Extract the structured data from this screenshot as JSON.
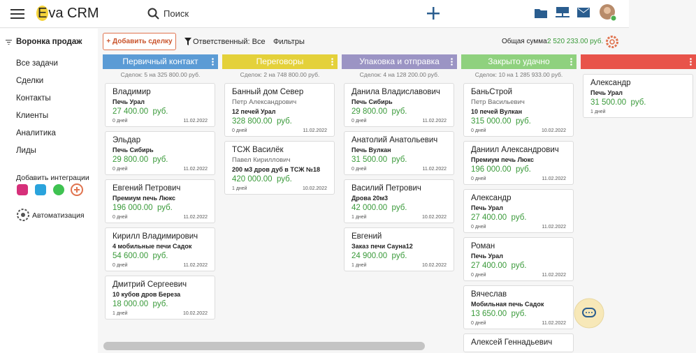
{
  "header": {
    "logo": "Eva CRM",
    "search": "Поиск"
  },
  "sidebar": {
    "title": "Воронка продаж",
    "menu": [
      "Все задачи",
      "Сделки",
      "Контакты",
      "Клиенты",
      "Аналитика",
      "Лиды"
    ],
    "integrations": "Добавить интеграции",
    "automation": "Автоматизация"
  },
  "toolbar": {
    "add_deal": "+ Добавить сделку",
    "responsible": "Ответственный: Все",
    "filters": "Фильтры",
    "total_label": "Общая сумма:",
    "total_value": "2 520 233.00 руб."
  },
  "columns": [
    {
      "title": "Первичный контакт",
      "color": "#5b9bd5",
      "summary": "Сделок: 5 на 325 800.00 руб.",
      "cards": [
        {
          "name": "Владимир",
          "product": "Печь Урал",
          "amount": "27 400.00  руб.",
          "age": "0 дней",
          "date": "11.02.2022"
        },
        {
          "name": "Эльдар",
          "product": "Печь Сибирь",
          "amount": "29 800.00  руб.",
          "age": "0 дней",
          "date": "11.02.2022"
        },
        {
          "name": "Евгений Петрович",
          "product": "Премиум печь Люкс",
          "amount": "196 000.00  руб.",
          "age": "0 дней",
          "date": "11.02.2022"
        },
        {
          "name": "Кирилл Владимирович",
          "product": "4 мобильные печи Садок",
          "amount": "54 600.00  руб.",
          "age": "0 дней",
          "date": "11.02.2022"
        },
        {
          "name": "Дмитрий Сергеевич",
          "product": "10 кубов дров Береза",
          "amount": "18 000.00  руб.",
          "age": "1 дней",
          "date": "10.02.2022"
        }
      ]
    },
    {
      "title": "Переговоры",
      "color": "#e4d13a",
      "summary": "Сделок: 2 на 748 800.00 руб.",
      "cards": [
        {
          "name": "Банный дом Север",
          "contact": "Петр Александрович",
          "product": "12 печей Урал",
          "amount": "328 800.00  руб.",
          "age": "0 дней",
          "date": "11.02.2022"
        },
        {
          "name": "ТСЖ Василёк",
          "contact": "Павел Кириллович",
          "product": "200 м3 дров дуб в ТСЖ №18",
          "amount": "420 000.00  руб.",
          "age": "1 дней",
          "date": "10.02.2022"
        }
      ]
    },
    {
      "title": "Упаковка и отправка",
      "color": "#9b94c4",
      "summary": "Сделок: 4 на 128 200.00 руб.",
      "cards": [
        {
          "name": "Данила Владиславович",
          "product": "Печь Сибирь",
          "amount": "29 800.00  руб.",
          "age": "0 дней",
          "date": "11.02.2022"
        },
        {
          "name": "Анатолий Анатольевич",
          "product": "Печь Вулкан",
          "amount": "31 500.00  руб.",
          "age": "0 дней",
          "date": "11.02.2022"
        },
        {
          "name": "Василий Петрович",
          "product": "Дрова 20м3",
          "amount": "42 000.00  руб.",
          "age": "1 дней",
          "date": "10.02.2022"
        },
        {
          "name": "Евгений",
          "product": "Заказ печи Сауна12",
          "amount": "24 900.00  руб.",
          "age": "1 дней",
          "date": "10.02.2022"
        }
      ]
    },
    {
      "title": "Закрыто удачно",
      "color": "#8fd17e",
      "summary": "Сделок: 10 на 1 285 933.00 руб.",
      "cards": [
        {
          "name": "БаньСтрой",
          "contact": "Петр Васильевич",
          "product": "10 печей Вулкан",
          "amount": "315 000.00  руб.",
          "age": "0 дней",
          "date": "10.02.2022"
        },
        {
          "name": "Даниил Александрович",
          "product": "Премиум печь Люкс",
          "amount": "196 000.00  руб.",
          "age": "0 дней",
          "date": "11.02.2022"
        },
        {
          "name": "Александр",
          "product": "Печь Урал",
          "amount": "27 400.00  руб.",
          "age": "0 дней",
          "date": "11.02.2022"
        },
        {
          "name": "Роман",
          "product": "Печь Урал",
          "amount": "27 400.00  руб.",
          "age": "0 дней",
          "date": "11.02.2022"
        },
        {
          "name": "Вячеслав",
          "product": "Мобильная печь Садок",
          "amount": "13 650.00  руб.",
          "age": "0 дней",
          "date": "11.02.2022"
        },
        {
          "name": "Алексей Геннадьевич"
        }
      ]
    },
    {
      "color": "#e8534a",
      "cards": [
        {
          "name": "Александр",
          "product": "Печь Урал",
          "amount": "31 500.00  руб.",
          "age": "1 дней"
        }
      ]
    }
  ]
}
